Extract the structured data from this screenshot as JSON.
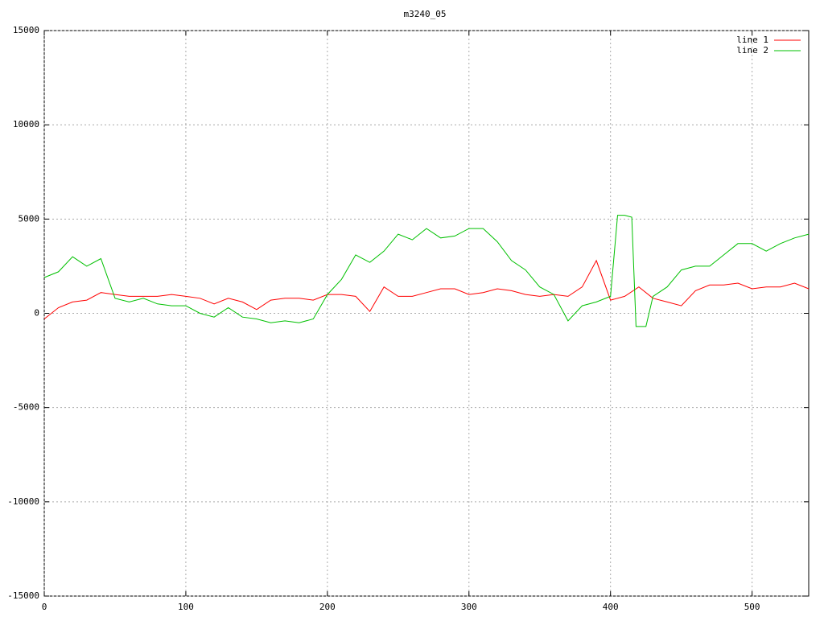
{
  "chart_data": {
    "type": "line",
    "title": "m3240_05",
    "xlim": [
      0,
      540
    ],
    "xticks": [
      0,
      100,
      200,
      300,
      400,
      500
    ],
    "ylim": [
      -15000,
      15000
    ],
    "yticks": [
      -15000,
      -10000,
      -5000,
      0,
      5000,
      10000,
      15000
    ],
    "grid": true,
    "legend": "top-right",
    "series": [
      {
        "name": "line 1",
        "color": "#ff0000",
        "x": [
          0,
          10,
          20,
          30,
          40,
          50,
          60,
          70,
          80,
          90,
          100,
          110,
          120,
          130,
          140,
          150,
          160,
          170,
          180,
          190,
          200,
          210,
          220,
          230,
          240,
          250,
          260,
          270,
          280,
          290,
          300,
          310,
          320,
          330,
          340,
          350,
          360,
          370,
          380,
          390,
          400,
          410,
          420,
          430,
          440,
          450,
          460,
          470,
          480,
          490,
          500,
          510,
          520,
          530,
          540
        ],
        "values": [
          -300,
          300,
          600,
          700,
          1100,
          1000,
          900,
          900,
          900,
          1000,
          900,
          800,
          500,
          800,
          600,
          200,
          700,
          800,
          800,
          700,
          1000,
          1000,
          900,
          100,
          1400,
          900,
          900,
          1100,
          1300,
          1300,
          1000,
          1100,
          1300,
          1200,
          1000,
          900,
          1000,
          900,
          1400,
          2800,
          700,
          900,
          1400,
          800,
          600,
          400,
          1200,
          1500,
          1500,
          1600,
          1300,
          1400,
          1400,
          1600,
          1300
        ]
      },
      {
        "name": "line 2",
        "color": "#00c000",
        "x": [
          0,
          10,
          20,
          30,
          40,
          50,
          60,
          70,
          80,
          90,
          100,
          110,
          120,
          130,
          140,
          150,
          160,
          170,
          180,
          190,
          200,
          210,
          220,
          230,
          240,
          250,
          260,
          270,
          280,
          290,
          300,
          310,
          320,
          330,
          340,
          350,
          360,
          370,
          380,
          390,
          400,
          405,
          410,
          415,
          418,
          425,
          430,
          440,
          450,
          460,
          470,
          480,
          490,
          500,
          510,
          520,
          530,
          540
        ],
        "values": [
          1900,
          2200,
          3000,
          2500,
          2900,
          800,
          600,
          800,
          500,
          400,
          400,
          0,
          -200,
          300,
          -200,
          -300,
          -500,
          -400,
          -500,
          -300,
          1000,
          1800,
          3100,
          2700,
          3300,
          4200,
          3900,
          4500,
          4000,
          4100,
          4500,
          4500,
          3800,
          2800,
          2300,
          1400,
          1000,
          -400,
          400,
          600,
          900,
          5200,
          5200,
          5100,
          -700,
          -700,
          900,
          1400,
          2300,
          2500,
          2500,
          3100,
          3700,
          3700,
          3300,
          3700,
          4000,
          4200
        ]
      }
    ]
  }
}
